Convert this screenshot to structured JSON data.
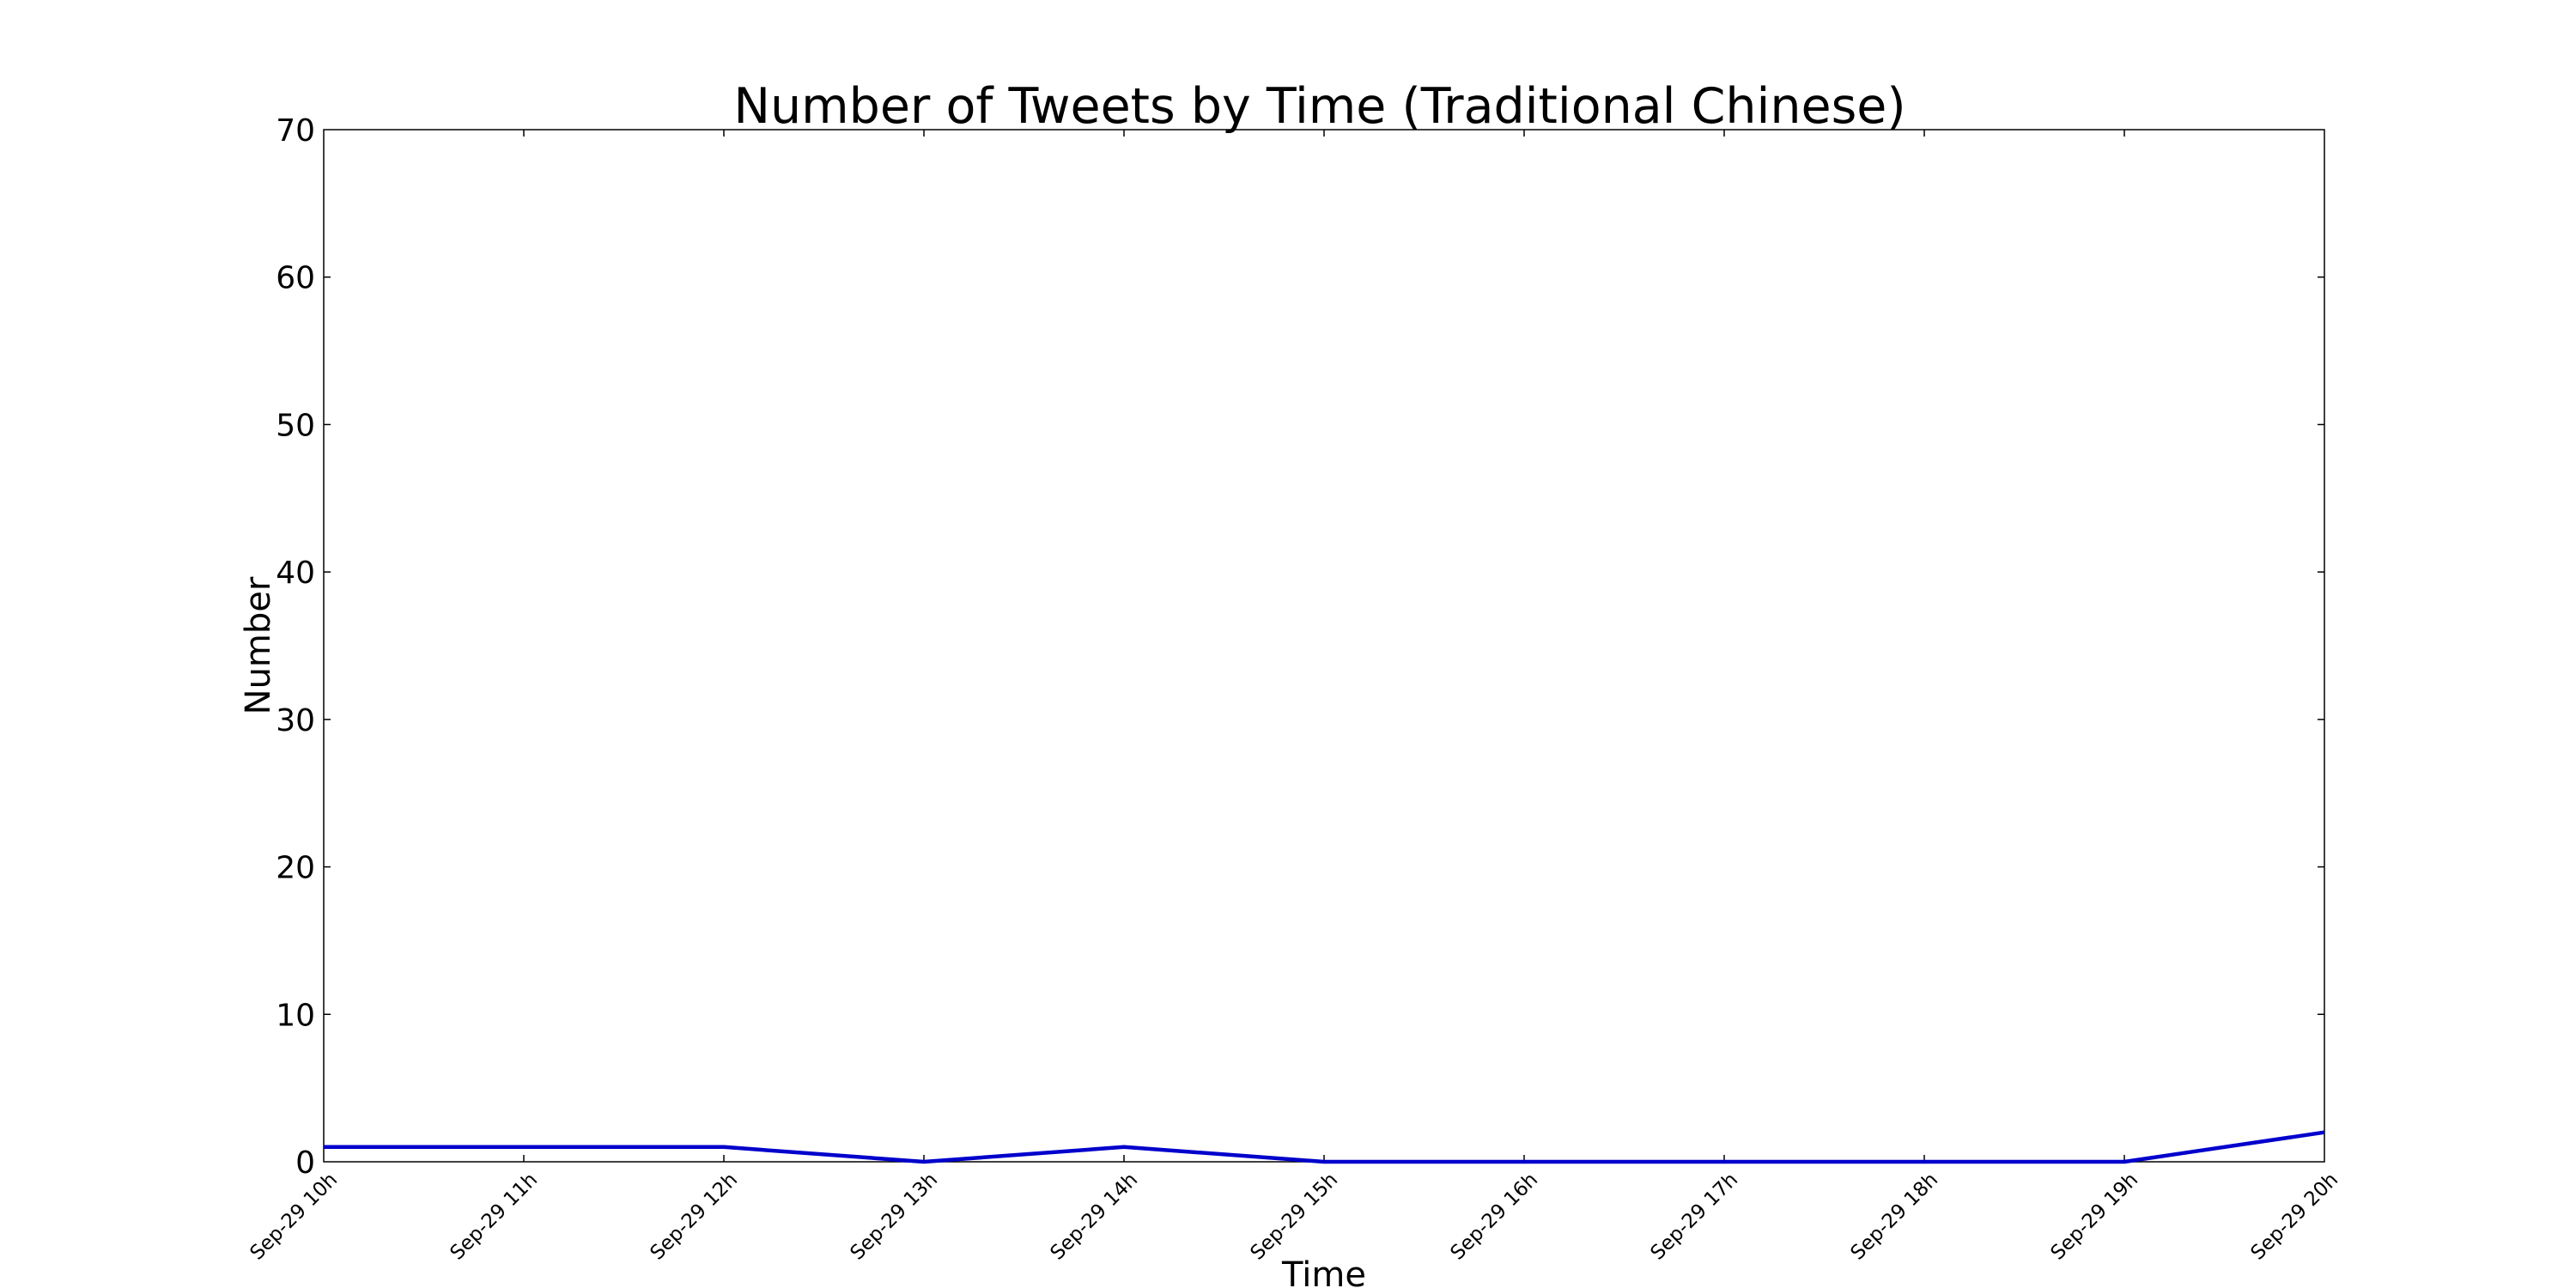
{
  "chart_data": {
    "type": "line",
    "title": "Number of Tweets by Time (Traditional Chinese)",
    "xlabel": "Time",
    "ylabel": "Number",
    "ylim": [
      0,
      70
    ],
    "yticks": [
      "0",
      "10",
      "20",
      "30",
      "40",
      "50",
      "60",
      "70"
    ],
    "categories": [
      "Sep-29 10h",
      "Sep-29 11h",
      "Sep-29 12h",
      "Sep-29 13h",
      "Sep-29 14h",
      "Sep-29 15h",
      "Sep-29 16h",
      "Sep-29 17h",
      "Sep-29 18h",
      "Sep-29 19h",
      "Sep-29 20h"
    ],
    "series": [
      {
        "values": [
          1,
          1,
          1,
          0,
          1,
          0,
          0,
          0,
          0,
          0,
          2
        ],
        "color": "#0000cc"
      }
    ],
    "grid": false,
    "legend": "none"
  }
}
